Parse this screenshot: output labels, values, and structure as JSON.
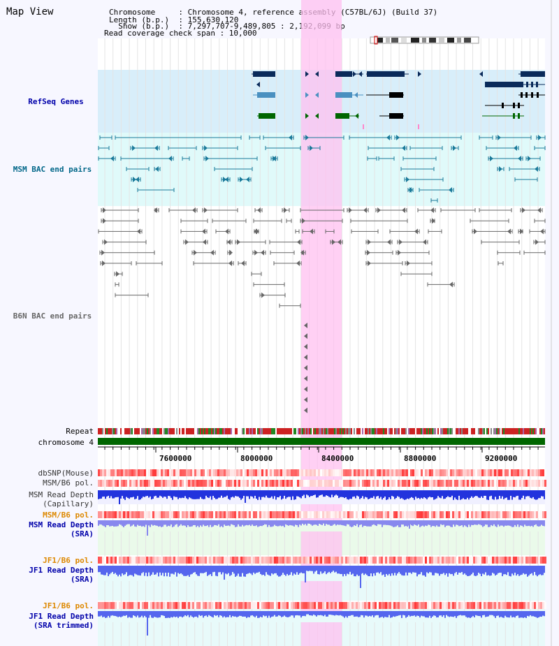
{
  "title": "Map View",
  "header": {
    "line1": "Chromosome     : Chromosome 4, reference assembly (C57BL/6J) (Build 37)",
    "line2": "Length (b.p.)  : 155,630,120",
    "line3": "  Show (b.p.)  : 7,297,707-9,489,805 : 2,192,099 bp",
    "line4": "Read coverage check span : 10,000"
  },
  "tracks": {
    "refseq": "RefSeq Genes",
    "msm_bac": "MSM BAC end pairs",
    "b6n_bac": "B6N BAC end pairs",
    "repeat": "Repeat",
    "chromosome": "chromosome 4",
    "dbsnp": "dbSNP(Mouse)",
    "msm_b6_pol": "MSM/B6 pol.",
    "msm_depth_cap_1": "MSM Read Depth",
    "msm_depth_cap_2": "(Capillary)",
    "msm_b6_pol_sra": "MSM/B6 pol.",
    "msm_depth_sra_1": "MSM Read Depth",
    "msm_depth_sra_2": "(SRA)",
    "jf1_b6_pol": "JF1/B6 pol.",
    "jf1_depth_sra_1": "JF1 Read Depth",
    "jf1_depth_sra_2": "(SRA)",
    "jf1_b6_pol_trim": "JF1/B6 pol.",
    "jf1_depth_trim_1": "JF1 Read Depth",
    "jf1_depth_trim_2": "(SRA trimmed)"
  },
  "axis_ticks": [
    "7600000",
    "8000000",
    "8400000",
    "8800000",
    "9200000"
  ],
  "colors": {
    "refseq_label": "#0000aa",
    "msm_label": "#006688",
    "b6n_label": "#666666",
    "pol_label_orange": "#dd8800",
    "depth_label_blue": "#0000aa",
    "highlight": "#ffc0f0",
    "chromosome_bar": "#006600",
    "refseq_bg": "#d8eefa",
    "msm_bg": "#e0fafa"
  }
}
